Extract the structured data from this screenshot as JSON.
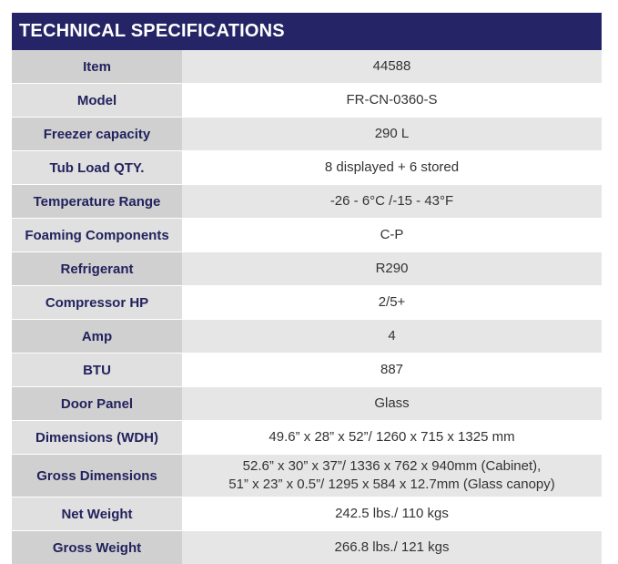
{
  "header": {
    "title": "TECHNICAL SPECIFICATIONS"
  },
  "specs": [
    {
      "label": "Item",
      "value": "44588"
    },
    {
      "label": "Model",
      "value": "FR-CN-0360-S"
    },
    {
      "label": "Freezer capacity",
      "value": "290 L"
    },
    {
      "label": "Tub Load QTY.",
      "value": "8 displayed + 6 stored"
    },
    {
      "label": "Temperature Range",
      "value": "-26 - 6°C /-15 - 43°F"
    },
    {
      "label": "Foaming Components",
      "value": "C-P"
    },
    {
      "label": "Refrigerant",
      "value": "R290"
    },
    {
      "label": "Compressor HP",
      "value": "2/5+"
    },
    {
      "label": "Amp",
      "value": "4"
    },
    {
      "label": "BTU",
      "value": "887"
    },
    {
      "label": "Door Panel",
      "value": "Glass"
    },
    {
      "label": "Dimensions (WDH)",
      "value": "49.6” x 28” x 52”/ 1260 x 715 x 1325 mm"
    },
    {
      "label": "Gross Dimensions",
      "value": "52.6” x 30” x 37”/ 1336 x 762 x 940mm (Cabinet),",
      "value2": "51” x 23” x 0.5”/ 1295 x 584 x  12.7mm (Glass canopy)"
    },
    {
      "label": "Net Weight",
      "value": "242.5 lbs./ 110 kgs"
    },
    {
      "label": "Gross Weight",
      "value": "266.8 lbs./ 121 kgs"
    }
  ]
}
